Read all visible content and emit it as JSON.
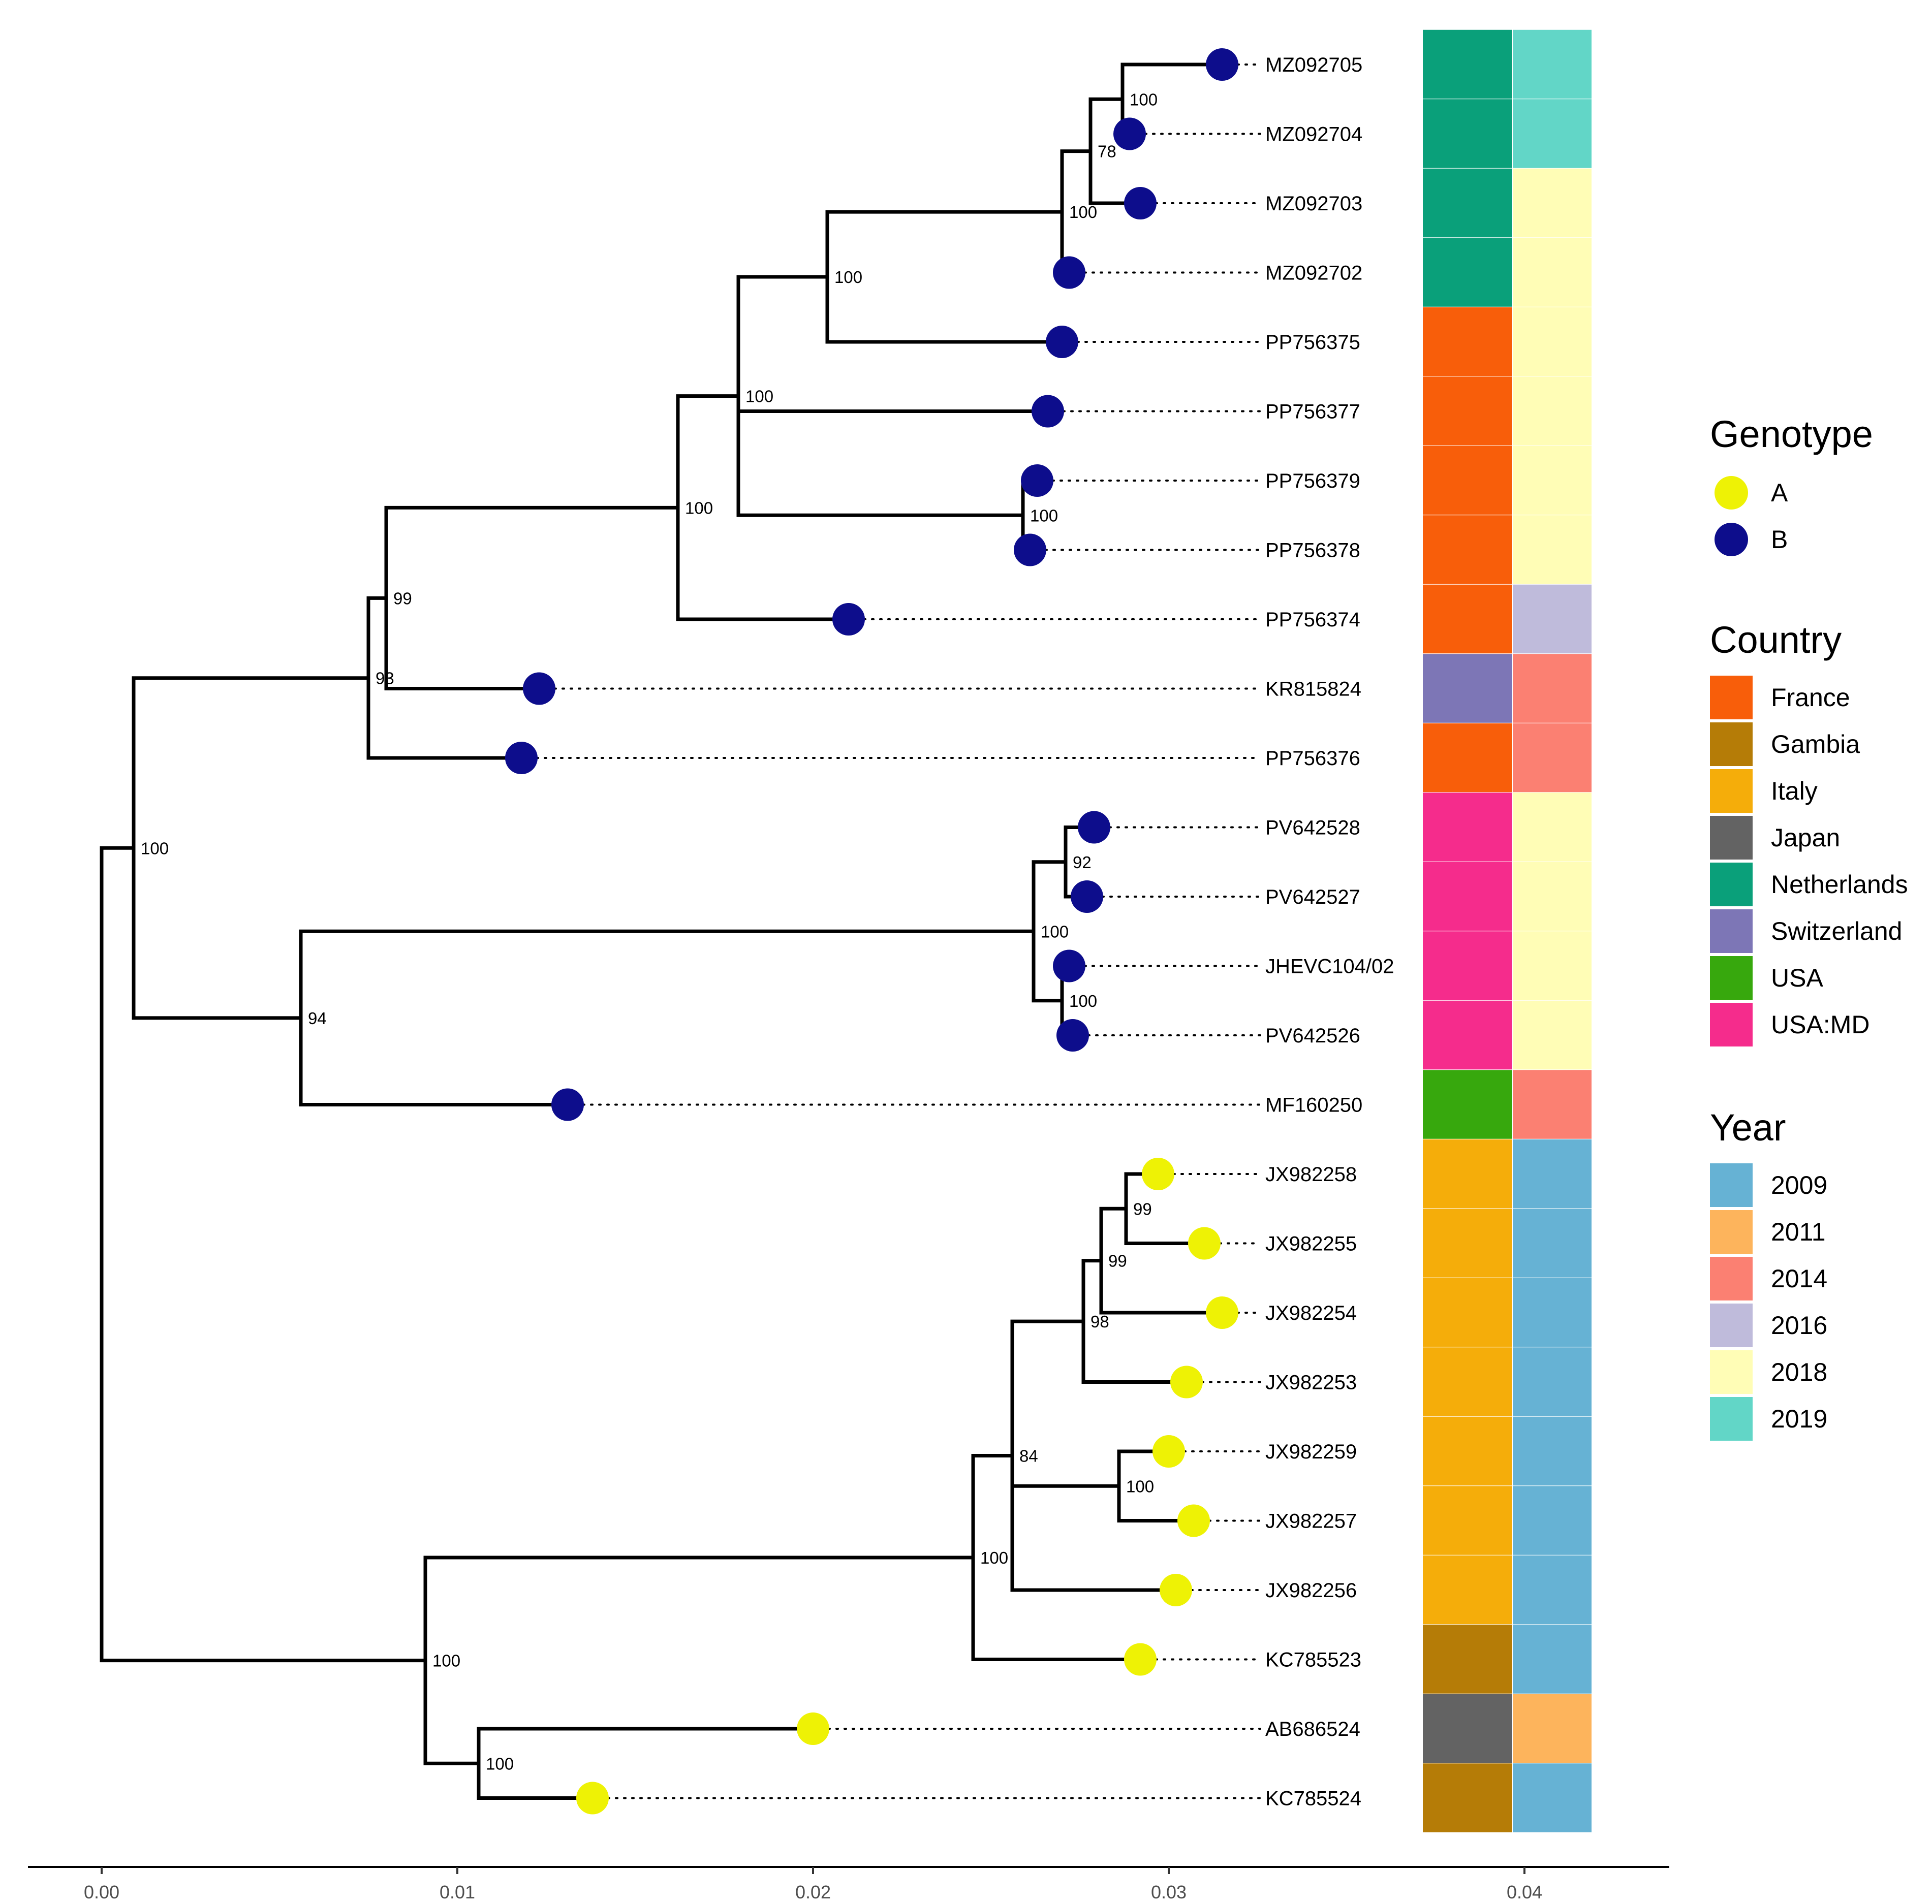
{
  "chart_data": {
    "type": "phylogenetic-tree",
    "x_axis": {
      "ticks": [
        "0.00",
        "0.01",
        "0.02",
        "0.03",
        "0.04"
      ],
      "xlim": [
        -0.002,
        0.0442
      ]
    },
    "colors": {
      "genotype": {
        "A": "#eef205",
        "B": "#0d0d8c"
      },
      "country": {
        "France": "#f85e0a",
        "Gambia": "#b57c07",
        "Italy": "#f5ad0a",
        "Japan": "#636363",
        "Netherlands": "#0aa07a",
        "Switzerland": "#7d76b6",
        "USA": "#37a80d",
        "USA:MD": "#f52c8c"
      },
      "year": {
        "2009": "#66b2d4",
        "2011": "#fdb45c",
        "2014": "#fb8072",
        "2016": "#bfbbdb",
        "2018": "#fffdb6",
        "2019": "#62d6c7"
      }
    },
    "legend": {
      "genotype": {
        "title": "Genotype",
        "items": [
          "A",
          "B"
        ]
      },
      "country": {
        "title": "Country",
        "items": [
          "France",
          "Gambia",
          "Italy",
          "Japan",
          "Netherlands",
          "Switzerland",
          "USA",
          "USA:MD"
        ]
      },
      "year": {
        "title": "Year",
        "items": [
          "2009",
          "2011",
          "2014",
          "2016",
          "2018",
          "2019"
        ]
      }
    },
    "tips": [
      {
        "label": "MZ092705",
        "x": 0.0315,
        "genotype": "B",
        "country": "Netherlands",
        "year": "2019"
      },
      {
        "label": "MZ092704",
        "x": 0.0289,
        "genotype": "B",
        "country": "Netherlands",
        "year": "2019"
      },
      {
        "label": "MZ092703",
        "x": 0.0292,
        "genotype": "B",
        "country": "Netherlands",
        "year": "2018"
      },
      {
        "label": "MZ092702",
        "x": 0.0272,
        "genotype": "B",
        "country": "Netherlands",
        "year": "2018"
      },
      {
        "label": "PP756375",
        "x": 0.027,
        "genotype": "B",
        "country": "France",
        "year": "2018"
      },
      {
        "label": "PP756377",
        "x": 0.0266,
        "genotype": "B",
        "country": "France",
        "year": "2018"
      },
      {
        "label": "PP756379",
        "x": 0.0263,
        "genotype": "B",
        "country": "France",
        "year": "2018"
      },
      {
        "label": "PP756378",
        "x": 0.0261,
        "genotype": "B",
        "country": "France",
        "year": "2018"
      },
      {
        "label": "PP756374",
        "x": 0.021,
        "genotype": "B",
        "country": "France",
        "year": "2016"
      },
      {
        "label": "KR815824",
        "x": 0.0123,
        "genotype": "B",
        "country": "Switzerland",
        "year": "2014"
      },
      {
        "label": "PP756376",
        "x": 0.0118,
        "genotype": "B",
        "country": "France",
        "year": "2014"
      },
      {
        "label": "PV642528",
        "x": 0.0279,
        "genotype": "B",
        "country": "USA:MD",
        "year": "2018"
      },
      {
        "label": "PV642527",
        "x": 0.0277,
        "genotype": "B",
        "country": "USA:MD",
        "year": "2018"
      },
      {
        "label": "JHEVC104/02",
        "x": 0.0272,
        "genotype": "B",
        "country": "USA:MD",
        "year": "2018"
      },
      {
        "label": "PV642526",
        "x": 0.0273,
        "genotype": "B",
        "country": "USA:MD",
        "year": "2018"
      },
      {
        "label": "MF160250",
        "x": 0.0131,
        "genotype": "B",
        "country": "USA",
        "year": "2014"
      },
      {
        "label": "JX982258",
        "x": 0.0297,
        "genotype": "A",
        "country": "Italy",
        "year": "2009"
      },
      {
        "label": "JX982255",
        "x": 0.031,
        "genotype": "A",
        "country": "Italy",
        "year": "2009"
      },
      {
        "label": "JX982254",
        "x": 0.0315,
        "genotype": "A",
        "country": "Italy",
        "year": "2009"
      },
      {
        "label": "JX982253",
        "x": 0.0305,
        "genotype": "A",
        "country": "Italy",
        "year": "2009"
      },
      {
        "label": "JX982259",
        "x": 0.03,
        "genotype": "A",
        "country": "Italy",
        "year": "2009"
      },
      {
        "label": "JX982257",
        "x": 0.0307,
        "genotype": "A",
        "country": "Italy",
        "year": "2009"
      },
      {
        "label": "JX982256",
        "x": 0.0302,
        "genotype": "A",
        "country": "Italy",
        "year": "2009"
      },
      {
        "label": "KC785523",
        "x": 0.0292,
        "genotype": "A",
        "country": "Gambia",
        "year": "2009"
      },
      {
        "label": "AB686524",
        "x": 0.02,
        "genotype": "A",
        "country": "Japan",
        "year": "2011"
      },
      {
        "label": "KC785524",
        "x": 0.0138,
        "genotype": "A",
        "country": "Gambia",
        "year": "2009"
      }
    ],
    "nodes": [
      {
        "id": "root",
        "x": 0.0,
        "support": null
      },
      {
        "id": "n1",
        "x": 0.0009,
        "parent": "root",
        "support": "100"
      },
      {
        "id": "n2",
        "x": 0.0075,
        "parent": "n1",
        "support": "93"
      },
      {
        "id": "n3",
        "x": 0.008,
        "parent": "n2",
        "support": "99"
      },
      {
        "id": "n4",
        "x": 0.0162,
        "parent": "n3",
        "support": "100"
      },
      {
        "id": "n5",
        "x": 0.0179,
        "parent": "n4",
        "support": "100"
      },
      {
        "id": "n6",
        "x": 0.0204,
        "parent": "n5",
        "support": "100"
      },
      {
        "id": "n7",
        "x": 0.027,
        "parent": "n6",
        "support": "100"
      },
      {
        "id": "n8",
        "x": 0.0278,
        "parent": "n7",
        "support": "78"
      },
      {
        "id": "n9",
        "x": 0.0287,
        "parent": "n8",
        "support": "100"
      },
      {
        "id": "n10",
        "x": 0.0259,
        "parent": "n5",
        "support": "100"
      },
      {
        "id": "n11",
        "x": 0.0056,
        "parent": "n1",
        "support": "94"
      },
      {
        "id": "n12",
        "x": 0.0262,
        "parent": "n11",
        "support": "100"
      },
      {
        "id": "n13",
        "x": 0.027,
        "parent": "n12",
        "support": "100"
      },
      {
        "id": "n14",
        "x": 0.0271,
        "parent": "n12",
        "support": "92"
      },
      {
        "id": "n15",
        "x": 0.0091,
        "parent": "root",
        "support": "100"
      },
      {
        "id": "n16",
        "x": 0.0245,
        "parent": "n15",
        "support": "100"
      },
      {
        "id": "n17",
        "x": 0.0256,
        "parent": "n16",
        "support": "84"
      },
      {
        "id": "n18",
        "x": 0.0276,
        "parent": "n17",
        "support": "98"
      },
      {
        "id": "n19",
        "x": 0.0281,
        "parent": "n18",
        "support": "99"
      },
      {
        "id": "n20",
        "x": 0.0288,
        "parent": "n19",
        "support": "99"
      },
      {
        "id": "n21",
        "x": 0.0286,
        "parent": "n17",
        "support": "100"
      },
      {
        "id": "n22",
        "x": 0.0106,
        "parent": "n15",
        "support": "100"
      }
    ],
    "tip_parents": {
      "MZ092705": "n9",
      "MZ092704": "n9",
      "MZ092703": "n8",
      "MZ092702": "n7",
      "PP756375": "n6",
      "PP756377": "n5",
      "PP756379": "n10",
      "PP756378": "n10",
      "PP756374": "n4",
      "KR815824": "n3",
      "PP756376": "n2",
      "PV642528": "n14",
      "PV642527": "n14",
      "JHEVC104/02": "n13",
      "PV642526": "n13",
      "MF160250": "n11",
      "JX982258": "n20",
      "JX982255": "n20",
      "JX982254": "n19",
      "JX982253": "n18",
      "JX982259": "n21",
      "JX982257": "n21",
      "JX982256": "n17",
      "KC785523": "n16",
      "AB686524": "n22",
      "KC785524": "n22"
    }
  }
}
